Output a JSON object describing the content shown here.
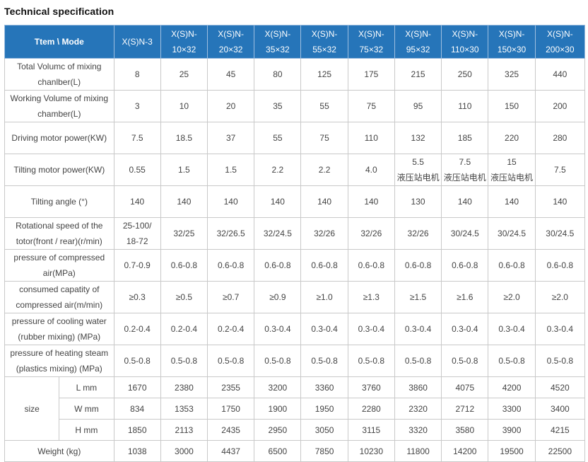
{
  "title": "Technical specification",
  "header": {
    "item": "Ttem \\ Mode",
    "models": [
      {
        "l1": "X(S)N-3",
        "l2": ""
      },
      {
        "l1": "X(S)N-",
        "l2": "10×32"
      },
      {
        "l1": "X(S)N-",
        "l2": "20×32"
      },
      {
        "l1": "X(S)N-",
        "l2": "35×32"
      },
      {
        "l1": "X(S)N-",
        "l2": "55×32"
      },
      {
        "l1": "X(S)N-",
        "l2": "75×32"
      },
      {
        "l1": "X(S)N-",
        "l2": "95×32"
      },
      {
        "l1": "X(S)N-",
        "l2": "110×30"
      },
      {
        "l1": "X(S)N-",
        "l2": "150×30"
      },
      {
        "l1": "X(S)N-",
        "l2": "200×30"
      }
    ]
  },
  "rows": [
    {
      "label": [
        "Total Volumc of mixing",
        "chanlber(L)"
      ],
      "values": [
        [
          "8"
        ],
        [
          "25"
        ],
        [
          "45"
        ],
        [
          "80"
        ],
        [
          "125"
        ],
        [
          "175"
        ],
        [
          "215"
        ],
        [
          "250"
        ],
        [
          "325"
        ],
        [
          "440"
        ]
      ]
    },
    {
      "label": [
        "Working Volume of mixing",
        "chamber(L)"
      ],
      "values": [
        [
          "3"
        ],
        [
          "10"
        ],
        [
          "20"
        ],
        [
          "35"
        ],
        [
          "55"
        ],
        [
          "75"
        ],
        [
          "95"
        ],
        [
          "110"
        ],
        [
          "150"
        ],
        [
          "200"
        ]
      ]
    },
    {
      "label": [
        "Driving motor power(KW)"
      ],
      "values": [
        [
          "7.5"
        ],
        [
          "18.5"
        ],
        [
          "37"
        ],
        [
          "55"
        ],
        [
          "75"
        ],
        [
          "110"
        ],
        [
          "132"
        ],
        [
          "185"
        ],
        [
          "220"
        ],
        [
          "280"
        ]
      ]
    },
    {
      "label": [
        "Tilting motor power(KW)"
      ],
      "values": [
        [
          "0.55"
        ],
        [
          "1.5"
        ],
        [
          "1.5"
        ],
        [
          "2.2"
        ],
        [
          "2.2"
        ],
        [
          "4.0"
        ],
        [
          "5.5",
          "液压站电机"
        ],
        [
          "7.5",
          "液压站电机"
        ],
        [
          "15",
          "液压站电机"
        ],
        [
          "7.5"
        ]
      ]
    },
    {
      "label": [
        "Tilting angle (°)"
      ],
      "values": [
        [
          "140"
        ],
        [
          "140"
        ],
        [
          "140"
        ],
        [
          "140"
        ],
        [
          "140"
        ],
        [
          "140"
        ],
        [
          "130"
        ],
        [
          "140"
        ],
        [
          "140"
        ],
        [
          "140"
        ]
      ]
    },
    {
      "label": [
        "Rotational speed of the",
        "totor(front / rear)(r/min)"
      ],
      "values": [
        [
          "25-100/",
          "18-72"
        ],
        [
          "32/25"
        ],
        [
          "32/26.5"
        ],
        [
          "32/24.5"
        ],
        [
          "32/26"
        ],
        [
          "32/26"
        ],
        [
          "32/26"
        ],
        [
          "30/24.5"
        ],
        [
          "30/24.5"
        ],
        [
          "30/24.5"
        ]
      ]
    },
    {
      "label": [
        "pressure of compressed",
        "air(MPa)"
      ],
      "values": [
        [
          "0.7-0.9"
        ],
        [
          "0.6-0.8"
        ],
        [
          "0.6-0.8"
        ],
        [
          "0.6-0.8"
        ],
        [
          "0.6-0.8"
        ],
        [
          "0.6-0.8"
        ],
        [
          "0.6-0.8"
        ],
        [
          "0.6-0.8"
        ],
        [
          "0.6-0.8"
        ],
        [
          "0.6-0.8"
        ]
      ]
    },
    {
      "label": [
        "consumed capatity of",
        "compressed air(m/min)"
      ],
      "values": [
        [
          "≥0.3"
        ],
        [
          "≥0.5"
        ],
        [
          "≥0.7"
        ],
        [
          "≥0.9"
        ],
        [
          "≥1.0"
        ],
        [
          "≥1.3"
        ],
        [
          "≥1.5"
        ],
        [
          "≥1.6"
        ],
        [
          "≥2.0"
        ],
        [
          "≥2.0"
        ]
      ]
    },
    {
      "label": [
        "pressure of cooling water",
        "(rubber mixing) (MPa)"
      ],
      "values": [
        [
          "0.2-0.4"
        ],
        [
          "0.2-0.4"
        ],
        [
          "0.2-0.4"
        ],
        [
          "0.3-0.4"
        ],
        [
          "0.3-0.4"
        ],
        [
          "0.3-0.4"
        ],
        [
          "0.3-0.4"
        ],
        [
          "0.3-0.4"
        ],
        [
          "0.3-0.4"
        ],
        [
          "0.3-0.4"
        ]
      ]
    },
    {
      "label": [
        "pressure of heating steam",
        "(plastics mixing) (MPa)"
      ],
      "values": [
        [
          "0.5-0.8"
        ],
        [
          "0.5-0.8"
        ],
        [
          "0.5-0.8"
        ],
        [
          "0.5-0.8"
        ],
        [
          "0.5-0.8"
        ],
        [
          "0.5-0.8"
        ],
        [
          "0.5-0.8"
        ],
        [
          "0.5-0.8"
        ],
        [
          "0.5-0.8"
        ],
        [
          "0.5-0.8"
        ]
      ]
    }
  ],
  "size": {
    "label": "size",
    "sub": [
      {
        "label": "L mm",
        "values": [
          "1670",
          "2380",
          "2355",
          "3200",
          "3360",
          "3760",
          "3860",
          "4075",
          "4200",
          "4520"
        ]
      },
      {
        "label": "W mm",
        "values": [
          "834",
          "1353",
          "1750",
          "1900",
          "1950",
          "2280",
          "2320",
          "2712",
          "3300",
          "3400"
        ]
      },
      {
        "label": "H mm",
        "values": [
          "1850",
          "2113",
          "2435",
          "2950",
          "3050",
          "3115",
          "3320",
          "3580",
          "3900",
          "4215"
        ]
      }
    ]
  },
  "weight": {
    "label": "Weight (kg)",
    "values": [
      "1038",
      "3000",
      "4437",
      "6500",
      "7850",
      "10230",
      "11800",
      "14200",
      "19500",
      "22500"
    ]
  }
}
